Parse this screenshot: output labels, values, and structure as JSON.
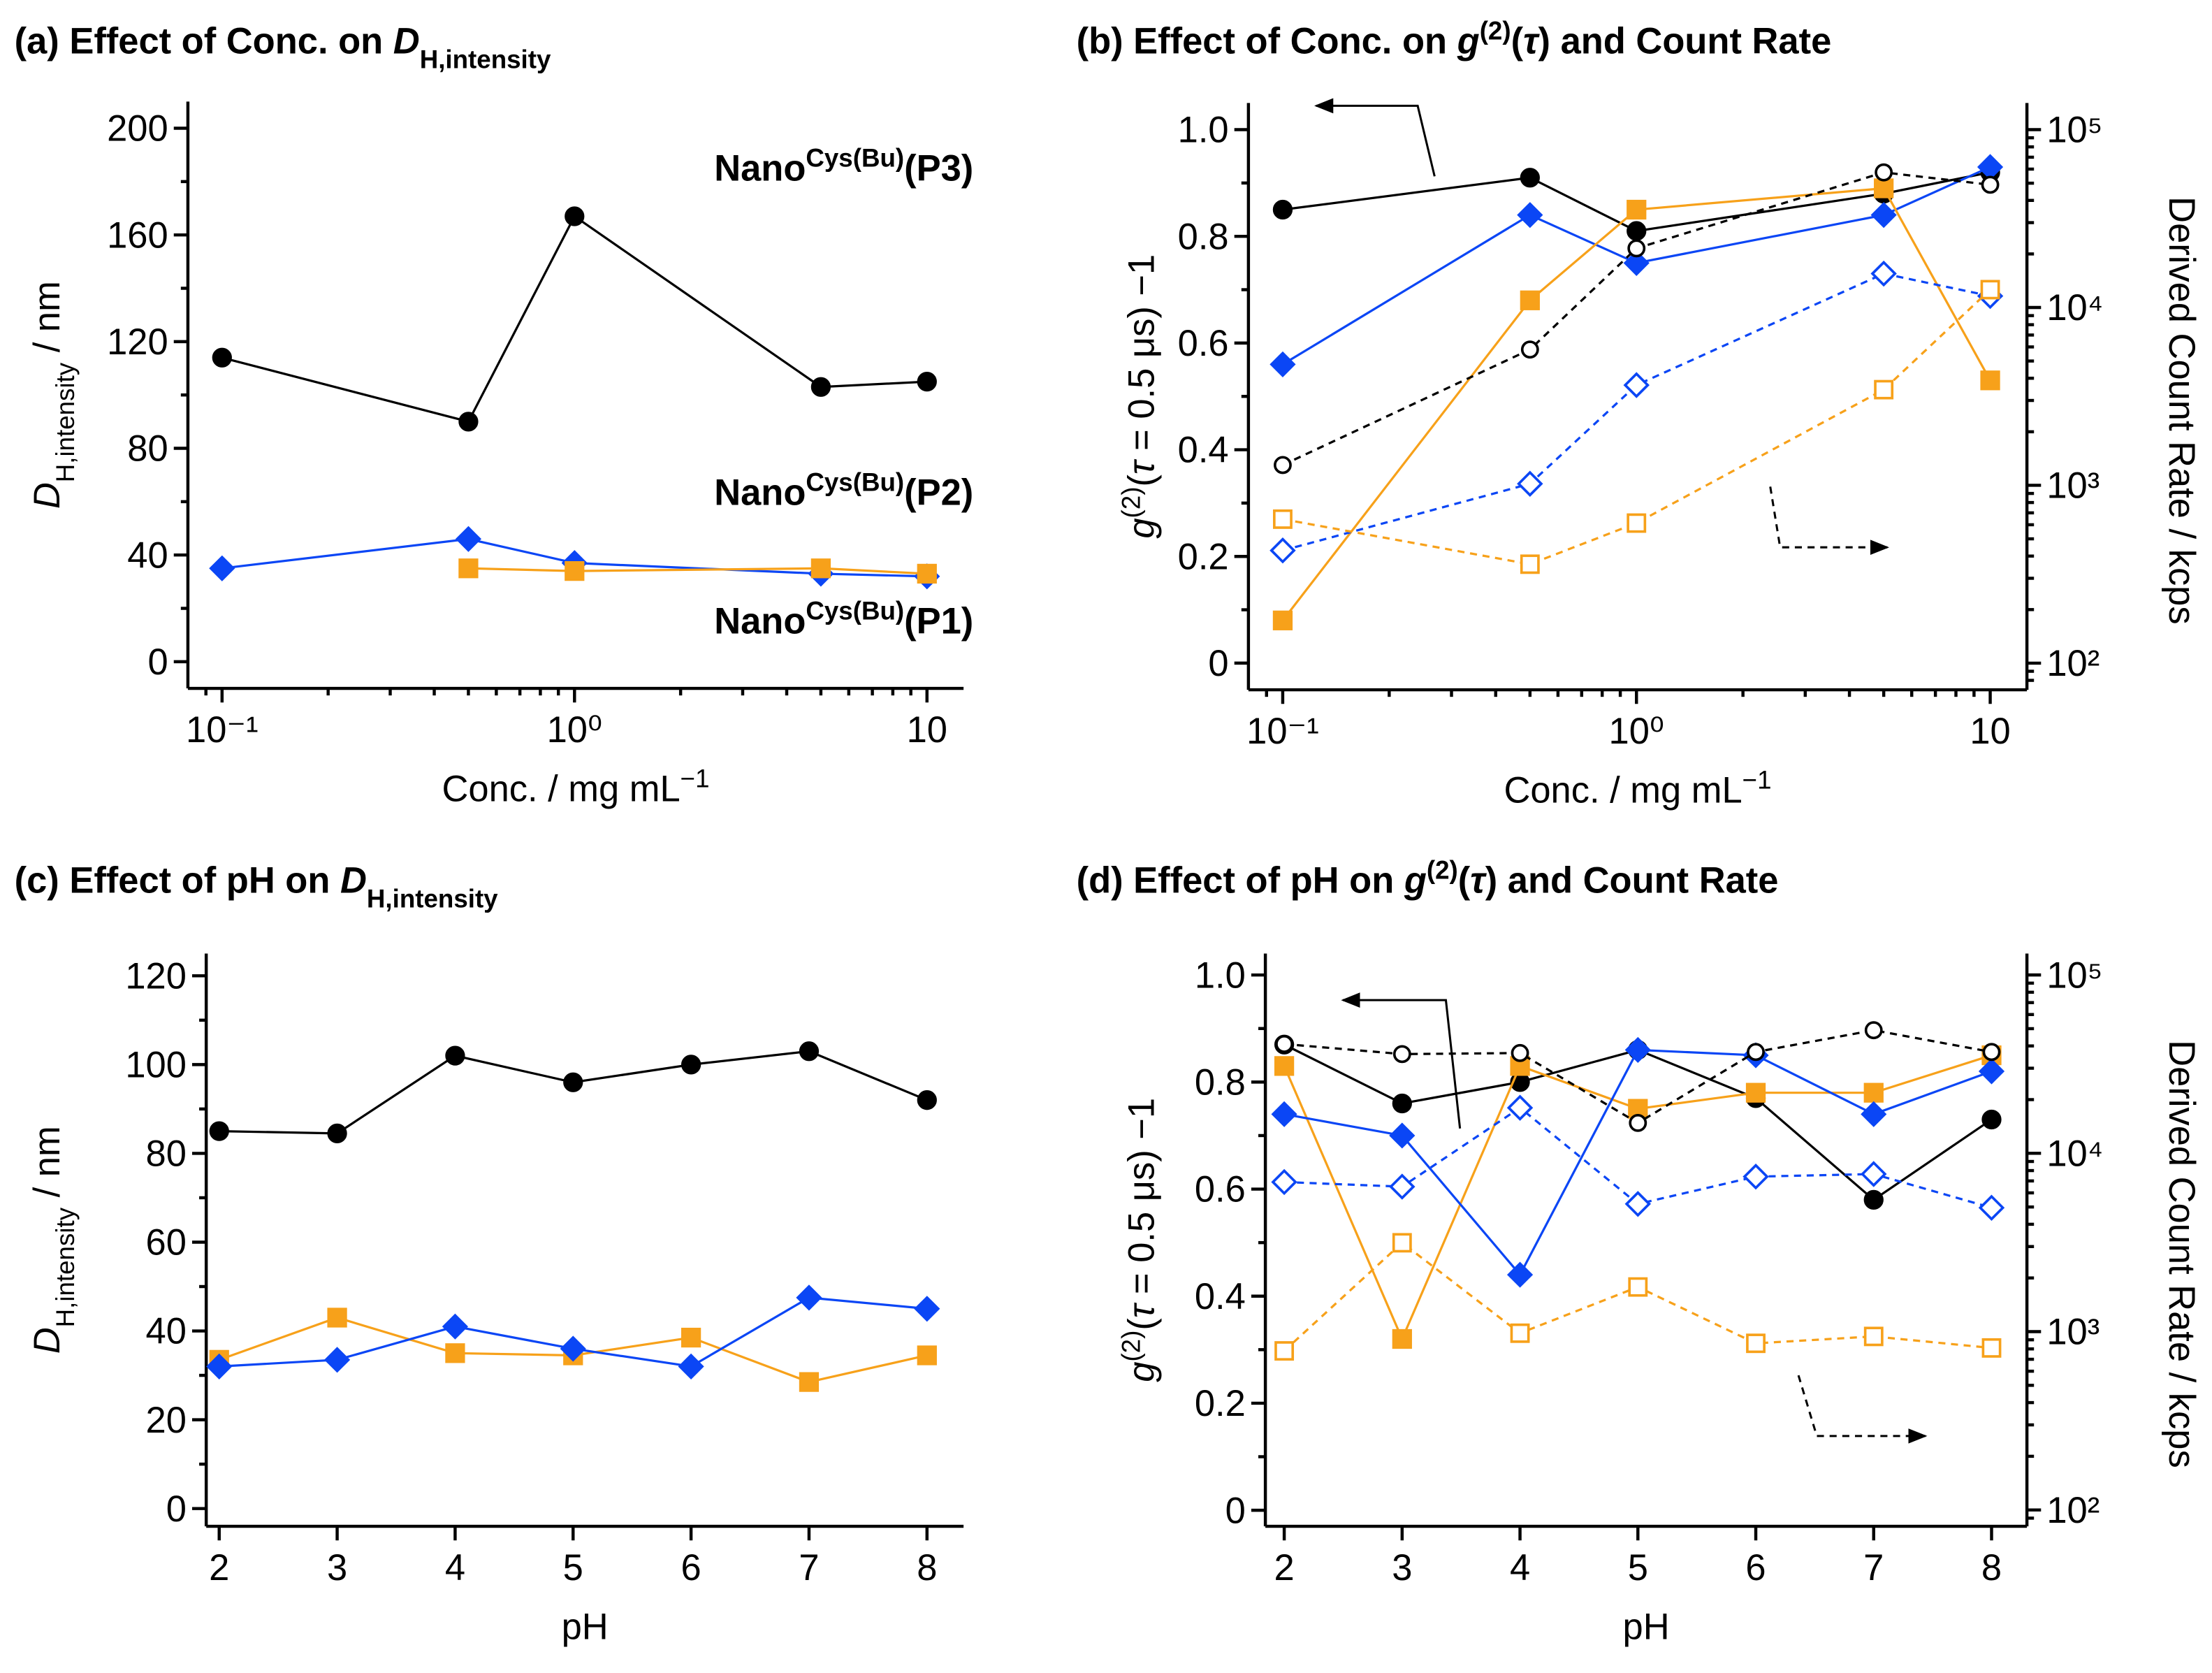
{
  "chart_data": [
    {
      "type": "line",
      "title": [
        {
          "text": "(a) Effect of Conc. on ",
          "style": "bold"
        },
        {
          "text": "D",
          "style": "bold-italic"
        },
        {
          "text": "H,intensity",
          "style": "bold-sub"
        }
      ],
      "xlabel": [
        {
          "text": "Conc. / mg mL"
        },
        {
          "text": "−1",
          "style": "sup"
        }
      ],
      "ylabel": [
        {
          "text": "D",
          "style": "italic"
        },
        {
          "text": "H,intensity",
          "style": "sub"
        },
        {
          "text": " / nm"
        }
      ],
      "xscale": "log",
      "xlim": [
        0.08,
        12.7
      ],
      "xticks": [
        {
          "value": 0.1,
          "label": "10⁻¹"
        },
        {
          "value": 1,
          "label": "10⁰"
        },
        10
      ],
      "ylim": [
        -10,
        210
      ],
      "yticks": [
        0,
        40,
        80,
        120,
        160,
        200
      ],
      "x": [
        0.1,
        0.5,
        1,
        5,
        10
      ],
      "series": [
        {
          "name": [
            {
              "text": "Nano"
            },
            {
              "text": "Cys(Bu)",
              "style": "sup"
            },
            {
              "text": "(P3)"
            }
          ],
          "color": "#000000",
          "marker": "circle",
          "filled": true,
          "dashed": false,
          "values": [
            114,
            90,
            167,
            103,
            105
          ]
        },
        {
          "name": [
            {
              "text": "Nano"
            },
            {
              "text": "Cys(Bu)",
              "style": "sup"
            },
            {
              "text": "(P2)"
            }
          ],
          "color": "#0b46f5",
          "marker": "diamond",
          "filled": true,
          "dashed": false,
          "values": [
            35,
            46,
            37,
            33,
            32
          ]
        },
        {
          "name": [
            {
              "text": "Nano"
            },
            {
              "text": "Cys(Bu)",
              "style": "sup"
            },
            {
              "text": "(P1)"
            }
          ],
          "color": "#f7a11a",
          "marker": "square",
          "filled": true,
          "dashed": false,
          "values": [
            null,
            35,
            34,
            35,
            33
          ]
        }
      ]
    },
    {
      "type": "line",
      "title": [
        {
          "text": "(b) Effect of Conc. on ",
          "style": "bold"
        },
        {
          "text": "g",
          "style": "bold-italic"
        },
        {
          "text": "(2)",
          "style": "bold-sup"
        },
        {
          "text": "(",
          "style": "bold"
        },
        {
          "text": "τ",
          "style": "bold-italic"
        },
        {
          "text": ") and Count Rate",
          "style": "bold"
        }
      ],
      "xlabel": [
        {
          "text": "Conc. / mg mL"
        },
        {
          "text": "−1",
          "style": "sup"
        }
      ],
      "ylabel": [
        {
          "text": "g",
          "style": "italic"
        },
        {
          "text": "(2)",
          "style": "sup"
        },
        {
          "text": "("
        },
        {
          "text": "τ",
          "style": "italic"
        },
        {
          "text": " = 0.5 μs) −1"
        }
      ],
      "y2label": "Derived Count Rate / kcps",
      "xscale": "log",
      "xlim": [
        0.08,
        12.7
      ],
      "xticks": [
        {
          "value": 0.1,
          "label": "10⁻¹"
        },
        {
          "value": 1,
          "label": "10⁰"
        },
        10
      ],
      "ylim": [
        -0.05,
        1.05
      ],
      "yticks": [
        0,
        {
          "value": 0.2,
          "label": "0.2"
        },
        {
          "value": 0.4,
          "label": "0.4"
        },
        {
          "value": 0.6,
          "label": "0.6"
        },
        {
          "value": 0.8,
          "label": "0.8"
        },
        {
          "value": 1,
          "label": "1.0"
        }
      ],
      "y2scale": "log",
      "y2lim": [
        70.8,
        141254
      ],
      "y2ticks": [
        {
          "value": 100,
          "label": "10²"
        },
        {
          "value": 1000,
          "label": "10³"
        },
        {
          "value": 10000,
          "label": "10⁴"
        },
        {
          "value": 100000,
          "label": "10⁵"
        }
      ],
      "x": [
        0.1,
        0.5,
        1,
        5,
        10
      ],
      "series": [
        {
          "color": "#000000",
          "marker": "circle",
          "filled": true,
          "dashed": false,
          "values": [
            0.85,
            0.91,
            0.81,
            0.88,
            0.92
          ]
        },
        {
          "color": "#0b46f5",
          "marker": "diamond",
          "filled": true,
          "dashed": false,
          "values": [
            0.56,
            0.84,
            0.75,
            0.84,
            0.93
          ]
        },
        {
          "color": "#f7a11a",
          "marker": "square",
          "filled": true,
          "dashed": false,
          "values": [
            0.08,
            0.68,
            0.85,
            0.89,
            0.53
          ]
        },
        {
          "color": "#000000",
          "marker": "circle",
          "filled": false,
          "dashed": true,
          "axis": "y2",
          "values": [
            1300,
            5800,
            21500,
            57500,
            49000
          ]
        },
        {
          "color": "#0b46f5",
          "marker": "diamond",
          "filled": false,
          "dashed": true,
          "axis": "y2",
          "values": [
            430,
            1020,
            3660,
            15500,
            11600
          ]
        },
        {
          "color": "#f7a11a",
          "marker": "square",
          "filled": false,
          "dashed": true,
          "axis": "y2",
          "values": [
            645,
            360,
            613,
            3450,
            12600
          ]
        }
      ]
    },
    {
      "type": "line",
      "title": [
        {
          "text": "(c) Effect of pH on ",
          "style": "bold"
        },
        {
          "text": "D",
          "style": "bold-italic"
        },
        {
          "text": "H,intensity",
          "style": "bold-sub"
        }
      ],
      "xlabel": "pH",
      "ylabel": [
        {
          "text": "D",
          "style": "italic"
        },
        {
          "text": "H,intensity",
          "style": "sub"
        },
        {
          "text": " / nm"
        }
      ],
      "xlim": [
        1.89,
        8.31
      ],
      "xticks": [
        2,
        3,
        4,
        5,
        6,
        7,
        8
      ],
      "ylim": [
        -4,
        125
      ],
      "yticks": [
        0,
        20,
        40,
        60,
        80,
        100,
        120
      ],
      "x": [
        2,
        3,
        4,
        5,
        6,
        7,
        8
      ],
      "series": [
        {
          "color": "#000000",
          "marker": "circle",
          "filled": true,
          "dashed": false,
          "values": [
            85,
            84.5,
            102,
            96,
            100,
            103,
            92
          ]
        },
        {
          "color": "#f7a11a",
          "marker": "square",
          "filled": true,
          "dashed": false,
          "values": [
            33.5,
            43,
            35,
            34.5,
            38.5,
            28.5,
            34.5
          ]
        },
        {
          "color": "#0b46f5",
          "marker": "diamond",
          "filled": true,
          "dashed": false,
          "values": [
            32,
            33.5,
            41,
            36,
            32,
            47.5,
            45
          ]
        }
      ]
    },
    {
      "type": "line",
      "title": [
        {
          "text": "(d) Effect of pH on ",
          "style": "bold"
        },
        {
          "text": "g",
          "style": "bold-italic"
        },
        {
          "text": "(2)",
          "style": "bold-sup"
        },
        {
          "text": "(",
          "style": "bold"
        },
        {
          "text": "τ",
          "style": "bold-italic"
        },
        {
          "text": ") and Count Rate",
          "style": "bold"
        }
      ],
      "xlabel": "pH",
      "ylabel": [
        {
          "text": "g",
          "style": "italic"
        },
        {
          "text": "(2)",
          "style": "sup"
        },
        {
          "text": "("
        },
        {
          "text": "τ",
          "style": "italic"
        },
        {
          "text": " = 0.5 μs) −1"
        }
      ],
      "y2label": "Derived Count Rate / kcps",
      "xlim": [
        1.84,
        8.3
      ],
      "xticks": [
        2,
        3,
        4,
        5,
        6,
        7,
        8
      ],
      "ylim": [
        -0.03,
        1.04
      ],
      "yticks": [
        0,
        {
          "value": 0.2,
          "label": "0.2"
        },
        {
          "value": 0.4,
          "label": "0.4"
        },
        {
          "value": 0.6,
          "label": "0.6"
        },
        {
          "value": 0.8,
          "label": "0.8"
        },
        {
          "value": 1,
          "label": "1.0"
        }
      ],
      "y2scale": "log",
      "y2lim": [
        81,
        131800
      ],
      "y2ticks": [
        {
          "value": 100,
          "label": "10²"
        },
        {
          "value": 1000,
          "label": "10³"
        },
        {
          "value": 10000,
          "label": "10⁴"
        },
        {
          "value": 100000,
          "label": "10⁵"
        }
      ],
      "x": [
        2,
        3,
        4,
        5,
        6,
        7,
        8
      ],
      "series": [
        {
          "color": "#000000",
          "marker": "circle",
          "filled": true,
          "dashed": false,
          "values": [
            0.87,
            0.76,
            0.8,
            0.86,
            0.77,
            0.58,
            0.73
          ]
        },
        {
          "color": "#f7a11a",
          "marker": "square",
          "filled": true,
          "dashed": false,
          "values": [
            0.83,
            0.32,
            0.83,
            0.75,
            0.78,
            0.78,
            0.85
          ]
        },
        {
          "color": "#0b46f5",
          "marker": "diamond",
          "filled": true,
          "dashed": false,
          "values": [
            0.74,
            0.7,
            0.44,
            0.86,
            0.85,
            0.74,
            0.82
          ]
        },
        {
          "color": "#000000",
          "marker": "circle",
          "filled": false,
          "dashed": true,
          "axis": "y2",
          "values": [
            41000,
            36000,
            36500,
            14800,
            37000,
            49000,
            37000
          ]
        },
        {
          "color": "#0b46f5",
          "marker": "diamond",
          "filled": false,
          "dashed": true,
          "axis": "y2",
          "values": [
            6900,
            6500,
            18000,
            5200,
            7400,
            7650,
            4950
          ]
        },
        {
          "color": "#f7a11a",
          "marker": "square",
          "filled": false,
          "dashed": true,
          "axis": "y2",
          "values": [
            780,
            3150,
            980,
            1780,
            860,
            940,
            810
          ]
        }
      ]
    }
  ]
}
